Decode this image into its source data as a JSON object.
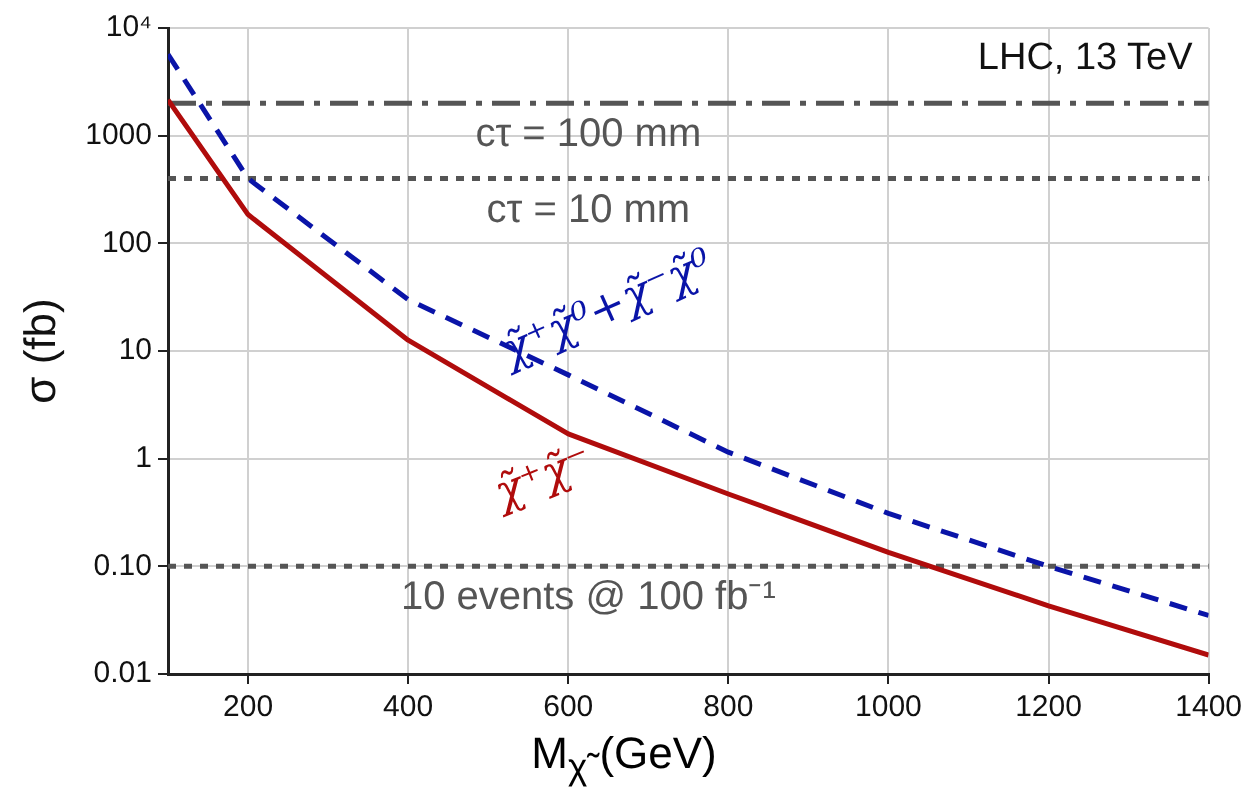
{
  "chart_data": {
    "type": "line",
    "xlabel": "M$_{χ̃}$ (GeV)",
    "ylabel": "σ (fb)",
    "log": "y",
    "grid": true,
    "legend": false,
    "marker": "none",
    "xlim": [
      100,
      1400
    ],
    "xticks": [
      200,
      400,
      600,
      800,
      1000,
      1200,
      1400
    ],
    "ylim": [
      0.01,
      10000
    ],
    "yticks": [
      0.01,
      {
        "value": 0.1,
        "label": "0.10"
      },
      1,
      10,
      100,
      1000,
      {
        "value": 10000,
        "label": "10⁴"
      }
    ],
    "x": [
      100,
      200,
      400,
      600,
      800,
      1000,
      1200,
      1400
    ],
    "series": [
      {
        "name": "χ̃⁺χ̃⁰+χ̃⁻χ̃⁰",
        "color": "#0a14a8",
        "line_style": "dashed",
        "values": [
          5700,
          400,
          30,
          6,
          1.15,
          0.31,
          0.1,
          0.035
        ]
      },
      {
        "name": "χ̃⁺χ̃⁻",
        "color": "#b00c0c",
        "line_style": "solid",
        "values": [
          2150,
          185,
          12.6,
          1.7,
          0.47,
          0.135,
          0.043,
          0.015
        ]
      }
    ],
    "ref_lines": [
      {
        "axis": "y",
        "value": 2000,
        "color": "#555555",
        "line_style": "dashed"
      },
      {
        "axis": "y",
        "value": 400,
        "color": "#555555",
        "line_style": "dotted"
      },
      {
        "axis": "y",
        "value": 0.1,
        "color": "#555555",
        "line_style": "dotted"
      }
    ],
    "annotations": [
      "LHC, 13 TeV",
      {
        "text": "cτ = 100 mm",
        "y": 2000
      },
      {
        "text": "cτ = 10 mm",
        "y": 400
      },
      {
        "text": "10 events @ 100 fb⁻¹",
        "y": 0.1
      }
    ]
  }
}
